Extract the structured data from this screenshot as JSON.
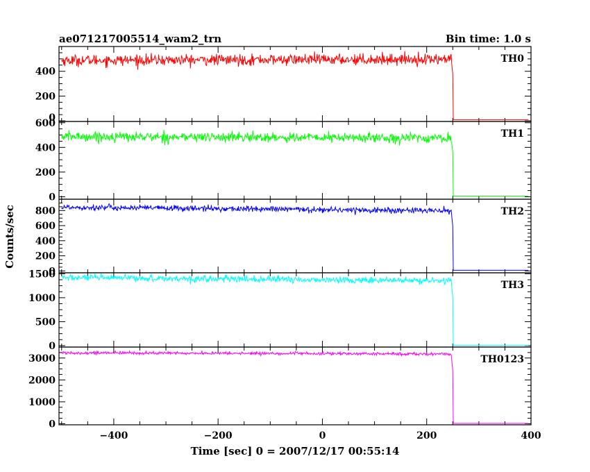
{
  "chart_data": {
    "type": "line",
    "title": "ae071217005514_wam2_trn",
    "bin_time_label": "Bin time: 1.0 s",
    "xlabel": "Time [sec] 0 = 2007/12/17 00:55:14",
    "ylabel": "Counts/sec",
    "x_range": [
      -505,
      400
    ],
    "x_ticks": [
      -400,
      -200,
      0,
      200,
      400
    ],
    "x_tick_labels": [
      "−400",
      "−200",
      "0",
      "200",
      "400"
    ],
    "drop_time": 250,
    "series": [
      {
        "name": "TH0",
        "color": "#ff0000",
        "level_start": 488,
        "level_end": 498,
        "noise": 22,
        "post_value": 10,
        "ylim": [
          -5,
          600
        ],
        "ticks": [
          200,
          400
        ],
        "tick_labels": [
          "200",
          "400"
        ],
        "extra_tick_labels": [
          "0"
        ]
      },
      {
        "name": "TH1",
        "color": "#00ff00",
        "level_start": 488,
        "level_end": 475,
        "noise": 20,
        "post_value": 5,
        "ylim": [
          -20,
          610
        ],
        "ticks": [
          0,
          200,
          400,
          600
        ],
        "tick_labels": [
          "0",
          "200",
          "400",
          "600"
        ]
      },
      {
        "name": "TH2",
        "color": "#0000ff",
        "level_start": 845,
        "level_end": 795,
        "noise": 20,
        "post_value": 8,
        "ylim": [
          -25,
          950
        ],
        "ticks": [
          0,
          200,
          400,
          600,
          800
        ],
        "tick_labels": [
          "0",
          "200",
          "400",
          "600",
          "800"
        ]
      },
      {
        "name": "TH3",
        "color": "#00ffff",
        "level_start": 1420,
        "level_end": 1350,
        "noise": 35,
        "post_value": 5,
        "ylim": [
          -30,
          1520
        ],
        "ticks": [
          0,
          500,
          1000,
          1500
        ],
        "tick_labels": [
          "0",
          "500",
          "1000",
          "1500"
        ]
      },
      {
        "name": "TH0123",
        "color": "#ff00ff",
        "level_start": 3240,
        "level_end": 3180,
        "noise": 35,
        "post_value": 15,
        "ylim": [
          -50,
          3500
        ],
        "ticks": [
          0,
          1000,
          2000,
          3000
        ],
        "tick_labels": [
          "0",
          "1000",
          "2000",
          "3000"
        ]
      }
    ]
  }
}
